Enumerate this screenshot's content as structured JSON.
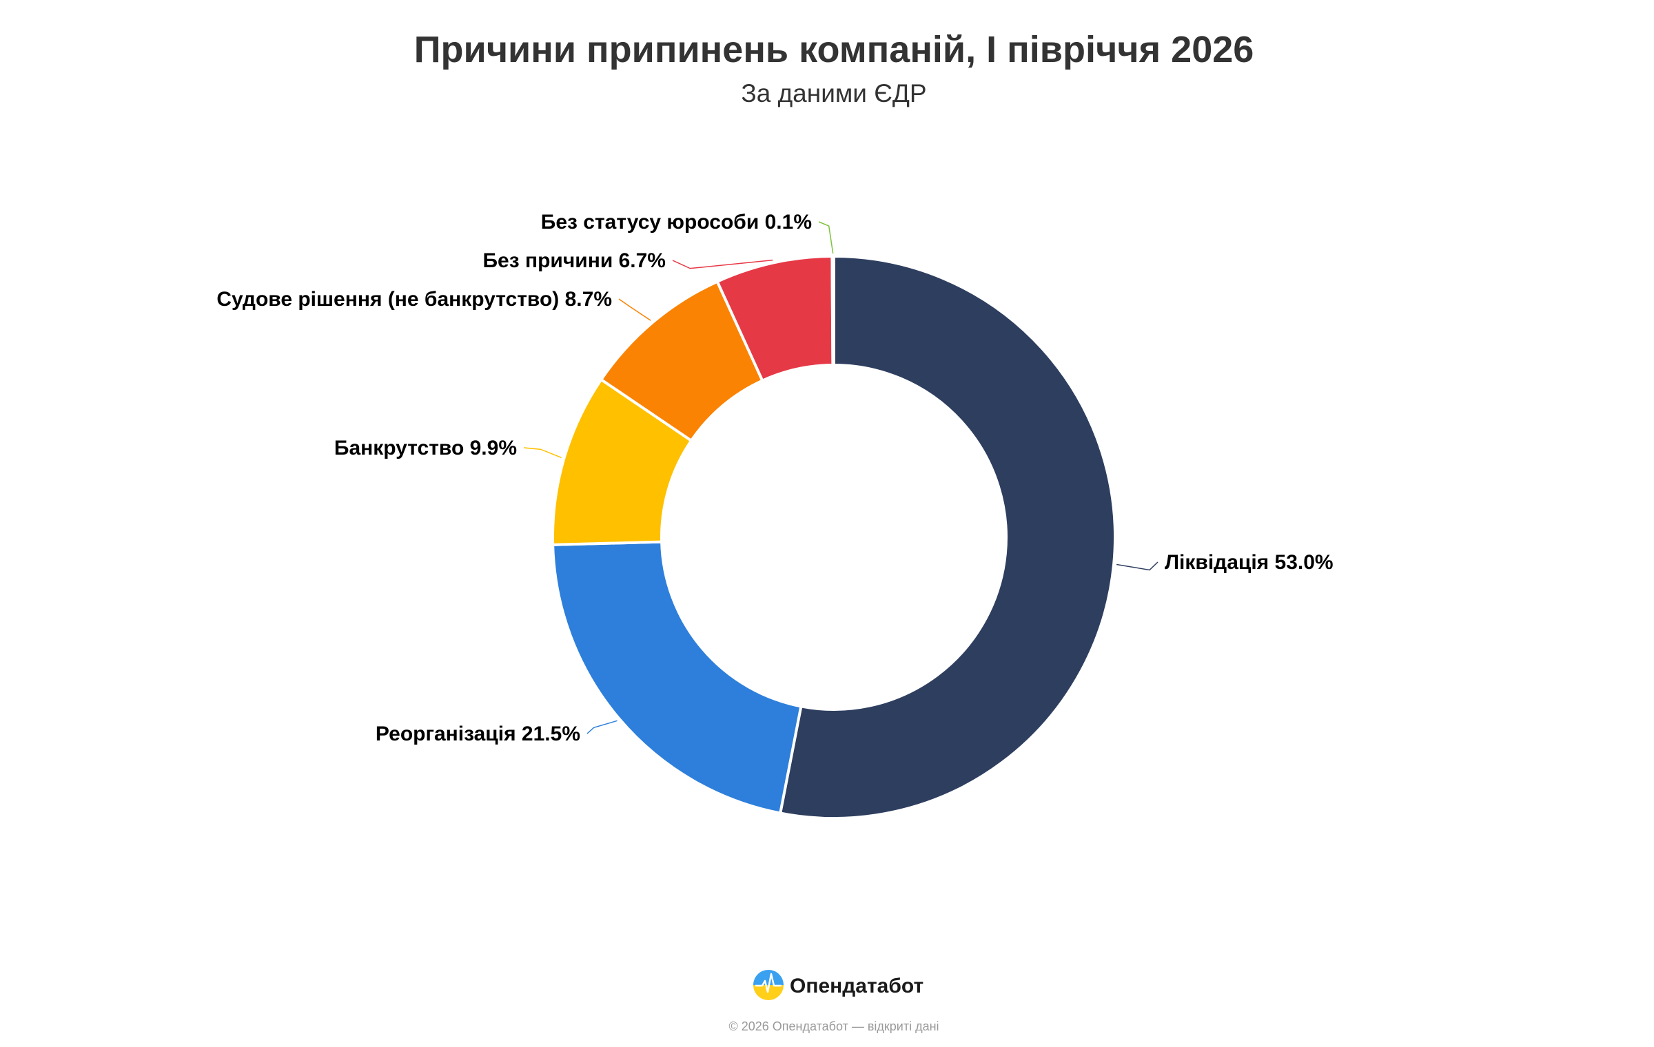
{
  "chart_data": {
    "type": "pie",
    "variant": "donut",
    "title": "Причини припинень компаній, І півріччя 2026",
    "subtitle": "За даними ЄДР",
    "legend": "none",
    "slices": [
      {
        "label": "Ліквідація",
        "value": 53.0,
        "value_text": "53.0%",
        "color": "#2e3e5f"
      },
      {
        "label": "Реорганізація",
        "value": 21.5,
        "value_text": "21.5%",
        "color": "#2d7fdb"
      },
      {
        "label": "Банкрутство",
        "value": 9.9,
        "value_text": "9.9%",
        "color": "#ffc000"
      },
      {
        "label": "Судове рішення (не банкрутство)",
        "value": 8.7,
        "value_text": "8.7%",
        "color": "#fa8303"
      },
      {
        "label": "Без причини",
        "value": 6.7,
        "value_text": "6.7%",
        "color": "#e63946"
      },
      {
        "label": "Без статусу юрособи",
        "value": 0.1,
        "value_text": "0.1%",
        "color": "#7cc43a"
      }
    ]
  },
  "footer": {
    "logo_name": "Опендатабот",
    "logo_icon": "opendatabot-logo-icon",
    "copyright": "© 2026 Опендатабот — відкриті дані"
  }
}
